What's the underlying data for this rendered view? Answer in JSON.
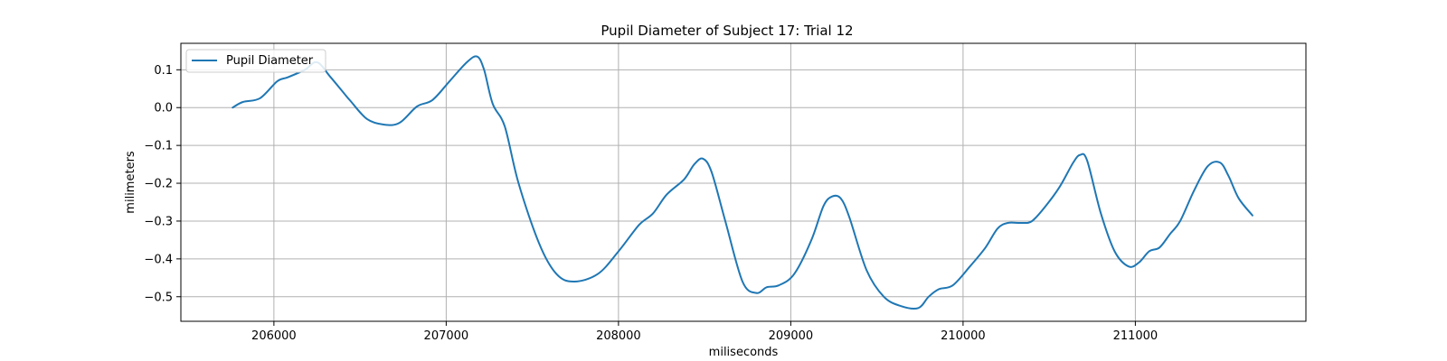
{
  "chart_data": {
    "type": "line",
    "title": "Pupil Diameter of Subject 17: Trial 12",
    "xlabel": "miliseconds",
    "ylabel": "milimeters",
    "xlim": [
      205460,
      211990
    ],
    "ylim": [
      -0.565,
      0.17
    ],
    "xticks": [
      206000,
      207000,
      208000,
      209000,
      210000,
      211000
    ],
    "yticks": [
      0.1,
      0.0,
      -0.1,
      -0.2,
      -0.3,
      -0.4,
      -0.5
    ],
    "ytick_labels": [
      "0.1",
      "0.0",
      "−0.1",
      "−0.2",
      "−0.3",
      "−0.4",
      "−0.5"
    ],
    "grid": true,
    "legend_position": "top-left",
    "series": [
      {
        "name": "Pupil Diameter",
        "color": "#1f77b4",
        "x": [
          205760,
          205820,
          205920,
          206020,
          206080,
          206180,
          206250,
          206330,
          206440,
          206540,
          206640,
          206730,
          206830,
          206920,
          207020,
          207120,
          207180,
          207220,
          207270,
          207340,
          207420,
          207540,
          207640,
          207740,
          207880,
          208000,
          208120,
          208200,
          208280,
          208380,
          208440,
          208490,
          208540,
          208620,
          208720,
          208800,
          208860,
          208930,
          209020,
          209120,
          209190,
          209240,
          209290,
          209340,
          209440,
          209540,
          209640,
          209740,
          209800,
          209860,
          209940,
          210040,
          210130,
          210200,
          210260,
          210340,
          210400,
          210480,
          210560,
          210640,
          210680,
          210720,
          210800,
          210880,
          210960,
          211020,
          211080,
          211140,
          211200,
          211260,
          211340,
          211420,
          211490,
          211540,
          211600,
          211680
        ],
        "y": [
          0.0,
          0.015,
          0.025,
          0.07,
          0.08,
          0.1,
          0.12,
          0.08,
          0.02,
          -0.03,
          -0.045,
          -0.04,
          0.003,
          0.02,
          0.07,
          0.12,
          0.135,
          0.1,
          0.01,
          -0.05,
          -0.2,
          -0.36,
          -0.44,
          -0.46,
          -0.44,
          -0.38,
          -0.31,
          -0.28,
          -0.23,
          -0.19,
          -0.15,
          -0.135,
          -0.17,
          -0.3,
          -0.46,
          -0.49,
          -0.475,
          -0.47,
          -0.44,
          -0.35,
          -0.26,
          -0.235,
          -0.24,
          -0.29,
          -0.43,
          -0.5,
          -0.525,
          -0.53,
          -0.5,
          -0.48,
          -0.47,
          -0.42,
          -0.37,
          -0.32,
          -0.305,
          -0.305,
          -0.3,
          -0.26,
          -0.21,
          -0.145,
          -0.125,
          -0.14,
          -0.28,
          -0.38,
          -0.42,
          -0.41,
          -0.38,
          -0.37,
          -0.335,
          -0.3,
          -0.22,
          -0.155,
          -0.145,
          -0.18,
          -0.24,
          -0.285
        ]
      }
    ]
  }
}
